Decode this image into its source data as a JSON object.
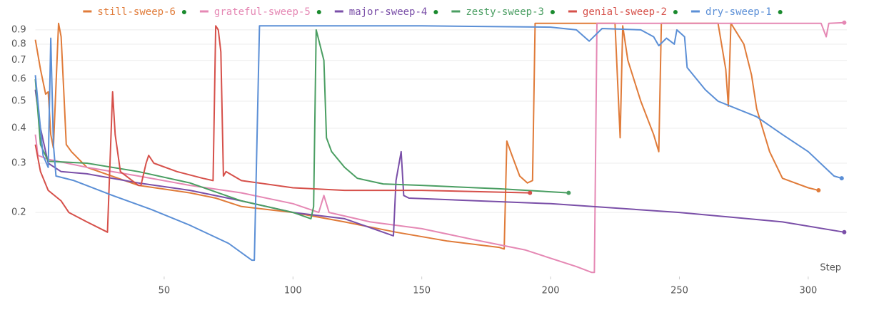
{
  "chart_data": {
    "type": "line",
    "xlabel": "Step",
    "log_y": true,
    "grid": true,
    "xlim": [
      0,
      315
    ],
    "ylim": [
      0.118,
      0.965
    ],
    "xticks": [
      50,
      100,
      150,
      200,
      250,
      300
    ],
    "yticks": [
      0.2,
      0.3,
      0.4,
      0.5,
      0.6,
      0.7,
      0.8,
      0.9
    ],
    "series": [
      {
        "name": "still-sweep-6",
        "color": "#e07b39",
        "x": [
          0,
          2,
          4,
          5,
          6,
          7,
          9,
          10,
          11,
          12,
          14,
          20,
          40,
          60,
          70,
          80,
          100,
          120,
          140,
          160,
          180,
          182,
          183,
          185,
          188,
          191,
          193,
          194,
          225,
          227,
          228,
          230,
          235,
          240,
          242,
          243,
          265,
          268,
          269,
          270,
          275,
          278,
          280,
          285,
          290,
          300,
          304
        ],
        "values": [
          0.83,
          0.65,
          0.53,
          0.54,
          0.38,
          0.34,
          0.95,
          0.85,
          0.55,
          0.35,
          0.33,
          0.29,
          0.25,
          0.235,
          0.225,
          0.21,
          0.2,
          0.185,
          0.17,
          0.158,
          0.15,
          0.148,
          0.36,
          0.32,
          0.27,
          0.255,
          0.26,
          0.95,
          0.95,
          0.37,
          0.93,
          0.7,
          0.5,
          0.38,
          0.33,
          0.95,
          0.95,
          0.65,
          0.48,
          0.95,
          0.8,
          0.62,
          0.47,
          0.33,
          0.265,
          0.245,
          0.24
        ]
      },
      {
        "name": "grateful-sweep-5",
        "color": "#e588b4",
        "x": [
          0,
          1,
          5,
          20,
          40,
          60,
          80,
          100,
          110,
          112,
          114,
          130,
          150,
          170,
          190,
          210,
          216,
          217,
          218,
          305,
          307,
          308,
          314
        ],
        "values": [
          0.38,
          0.32,
          0.31,
          0.29,
          0.27,
          0.25,
          0.235,
          0.215,
          0.2,
          0.23,
          0.2,
          0.185,
          0.175,
          0.16,
          0.147,
          0.128,
          0.122,
          0.122,
          0.95,
          0.95,
          0.85,
          0.95,
          0.955
        ]
      },
      {
        "name": "major-sweep-4",
        "color": "#7a4fa8",
        "x": [
          0,
          2,
          5,
          10,
          20,
          40,
          60,
          80,
          100,
          120,
          139,
          140,
          142,
          143,
          145,
          200,
          250,
          290,
          314
        ],
        "values": [
          0.55,
          0.4,
          0.3,
          0.28,
          0.275,
          0.255,
          0.24,
          0.22,
          0.2,
          0.19,
          0.165,
          0.26,
          0.33,
          0.23,
          0.225,
          0.215,
          0.2,
          0.185,
          0.17
        ]
      },
      {
        "name": "zesty-sweep-3",
        "color": "#4a9e62",
        "x": [
          0,
          2,
          5,
          20,
          40,
          60,
          80,
          100,
          107,
          108,
          109,
          112,
          113,
          115,
          120,
          125,
          135,
          150,
          180,
          207
        ],
        "values": [
          0.6,
          0.35,
          0.305,
          0.3,
          0.28,
          0.255,
          0.22,
          0.2,
          0.19,
          0.21,
          0.9,
          0.7,
          0.37,
          0.33,
          0.29,
          0.265,
          0.253,
          0.25,
          0.243,
          0.235
        ]
      },
      {
        "name": "genial-sweep-2",
        "color": "#d6504a",
        "x": [
          0,
          2,
          5,
          10,
          13,
          20,
          28,
          30,
          31,
          33,
          40,
          41,
          43,
          44,
          46,
          55,
          65,
          69,
          70,
          71,
          72,
          73,
          74,
          80,
          100,
          120,
          150,
          192
        ],
        "values": [
          0.35,
          0.28,
          0.24,
          0.22,
          0.2,
          0.185,
          0.17,
          0.54,
          0.38,
          0.28,
          0.25,
          0.25,
          0.3,
          0.32,
          0.3,
          0.28,
          0.265,
          0.26,
          0.93,
          0.9,
          0.75,
          0.27,
          0.28,
          0.26,
          0.245,
          0.24,
          0.24,
          0.235
        ]
      },
      {
        "name": "dry-sweep-1",
        "color": "#5b8fd6",
        "x": [
          0,
          3,
          5,
          6,
          7,
          8,
          15,
          30,
          45,
          60,
          75,
          84,
          85,
          87,
          150,
          200,
          210,
          215,
          220,
          235,
          240,
          242,
          245,
          248,
          249,
          252,
          253,
          260,
          265,
          280,
          290,
          300,
          310,
          313
        ],
        "values": [
          0.62,
          0.32,
          0.29,
          0.84,
          0.35,
          0.27,
          0.26,
          0.23,
          0.205,
          0.18,
          0.155,
          0.135,
          0.135,
          0.93,
          0.93,
          0.92,
          0.9,
          0.82,
          0.91,
          0.9,
          0.85,
          0.79,
          0.84,
          0.8,
          0.9,
          0.85,
          0.66,
          0.55,
          0.5,
          0.44,
          0.38,
          0.33,
          0.27,
          0.265
        ]
      }
    ]
  }
}
